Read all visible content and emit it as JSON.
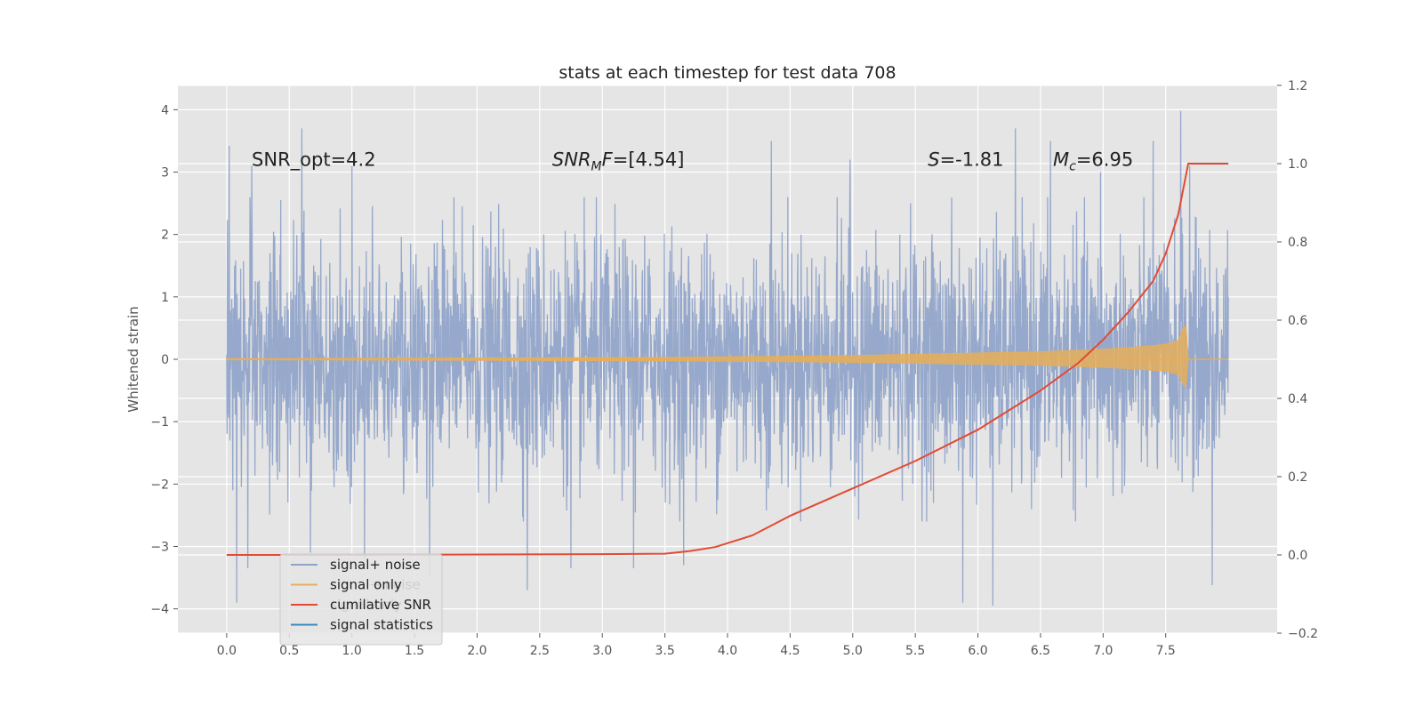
{
  "chart_data": {
    "type": "line",
    "title": "stats at each timestep for test data 708",
    "xlabel": "",
    "ylabel": "Whitened strain",
    "ylabel_right": "",
    "grid": true,
    "style": "ggplot",
    "xlim": [
      -0.39,
      8.39
    ],
    "ylim": [
      -4.39,
      4.39
    ],
    "ylim_right": [
      -0.2,
      1.2
    ],
    "xticks": [
      0.0,
      0.5,
      1.0,
      1.5,
      2.0,
      2.5,
      3.0,
      3.5,
      4.0,
      4.5,
      5.0,
      5.5,
      6.0,
      6.5,
      7.0,
      7.5
    ],
    "xtick_labels": [
      "0.0",
      "0.5",
      "1.0",
      "1.5",
      "2.0",
      "2.5",
      "3.0",
      "3.5",
      "4.0",
      "4.5",
      "5.0",
      "5.5",
      "6.0",
      "6.5",
      "7.0",
      "7.5"
    ],
    "yticks": [
      -4,
      -3,
      -2,
      -1,
      0,
      1,
      2,
      3,
      4
    ],
    "ytick_labels": [
      "−4",
      "−3",
      "−2",
      "−1",
      "0",
      "1",
      "2",
      "3",
      "4"
    ],
    "yticks_right": [
      -0.2,
      0.0,
      0.2,
      0.4,
      0.6,
      0.8,
      1.0,
      1.2
    ],
    "ytick_labels_right": [
      "−0.2",
      "0.0",
      "0.2",
      "0.4",
      "0.6",
      "0.8",
      "1.0",
      "1.2"
    ],
    "annotations": [
      {
        "text": "SNR_opt=4.2",
        "x": 0.2,
        "y": 3.1
      },
      {
        "text": "SNR_M F=[4.54]",
        "x": 2.6,
        "y": 3.1
      },
      {
        "text": "S=-1.81",
        "x": 5.6,
        "y": 3.1
      },
      {
        "text": "M_c=6.95",
        "x": 6.6,
        "y": 3.1
      }
    ],
    "legend": {
      "position": "lower-left",
      "entries": [
        "signal+ noise",
        "signal only",
        "cumilative SNR",
        "signal statistics"
      ],
      "ghost_entries": [
        "signal+ noise",
        "signal only"
      ]
    },
    "series": [
      {
        "name": "signal+ noise",
        "color": "#8fa3c9",
        "kind": "noise",
        "x_range": [
          0.0,
          8.0
        ],
        "envelope": [
          -2.0,
          2.0
        ],
        "spikes": [
          {
            "x": 0.02,
            "y": 3.42
          },
          {
            "x": 0.05,
            "y": -2.1
          },
          {
            "x": 0.08,
            "y": -3.9
          },
          {
            "x": 0.2,
            "y": 3.1
          },
          {
            "x": 0.17,
            "y": -3.35
          },
          {
            "x": 0.6,
            "y": 3.7
          },
          {
            "x": 0.67,
            "y": -3.1
          },
          {
            "x": 1.0,
            "y": 3.1
          },
          {
            "x": 1.1,
            "y": -3.3
          },
          {
            "x": 1.62,
            "y": -3.5
          },
          {
            "x": 2.4,
            "y": -3.7
          },
          {
            "x": 2.75,
            "y": -3.35
          },
          {
            "x": 3.25,
            "y": -3.35
          },
          {
            "x": 3.65,
            "y": -3.3
          },
          {
            "x": 4.35,
            "y": 3.5
          },
          {
            "x": 4.98,
            "y": 3.2
          },
          {
            "x": 5.88,
            "y": -3.9
          },
          {
            "x": 6.12,
            "y": -3.95
          },
          {
            "x": 6.3,
            "y": 3.7
          },
          {
            "x": 6.58,
            "y": 3.5
          },
          {
            "x": 6.98,
            "y": 3.0
          },
          {
            "x": 7.4,
            "y": 3.5
          },
          {
            "x": 7.62,
            "y": 3.98
          },
          {
            "x": 7.87,
            "y": -3.62
          },
          {
            "x": 7.69,
            "y": 3.1
          },
          {
            "x": 8.0,
            "y": 1.0
          }
        ]
      },
      {
        "name": "signal only",
        "color": "#e5ae5a",
        "kind": "chirp",
        "envelope": [
          [
            0.0,
            0.01
          ],
          [
            2.0,
            0.02
          ],
          [
            3.5,
            0.03
          ],
          [
            4.5,
            0.05
          ],
          [
            5.0,
            0.06
          ],
          [
            5.5,
            0.08
          ],
          [
            6.0,
            0.1
          ],
          [
            6.5,
            0.12
          ],
          [
            7.0,
            0.16
          ],
          [
            7.3,
            0.2
          ],
          [
            7.5,
            0.24
          ],
          [
            7.6,
            0.3
          ],
          [
            7.66,
            0.6
          ],
          [
            7.68,
            0.0
          ],
          [
            8.0,
            0.0
          ]
        ]
      },
      {
        "name": "cumilative SNR",
        "color": "#e24a33",
        "axis": "right",
        "x": [
          0.0,
          1.0,
          2.0,
          3.0,
          3.5,
          3.7,
          3.9,
          4.0,
          4.2,
          4.5,
          5.0,
          5.5,
          6.0,
          6.5,
          6.8,
          7.0,
          7.2,
          7.4,
          7.5,
          7.6,
          7.68,
          8.0
        ],
        "y": [
          0.0,
          0.0,
          0.001,
          0.002,
          0.003,
          0.01,
          0.02,
          0.03,
          0.05,
          0.1,
          0.17,
          0.24,
          0.32,
          0.42,
          0.49,
          0.55,
          0.62,
          0.7,
          0.77,
          0.87,
          1.0,
          1.0
        ]
      },
      {
        "name": "signal statistics",
        "color": "#348abd",
        "axis": "right",
        "x": [],
        "y": []
      }
    ]
  }
}
